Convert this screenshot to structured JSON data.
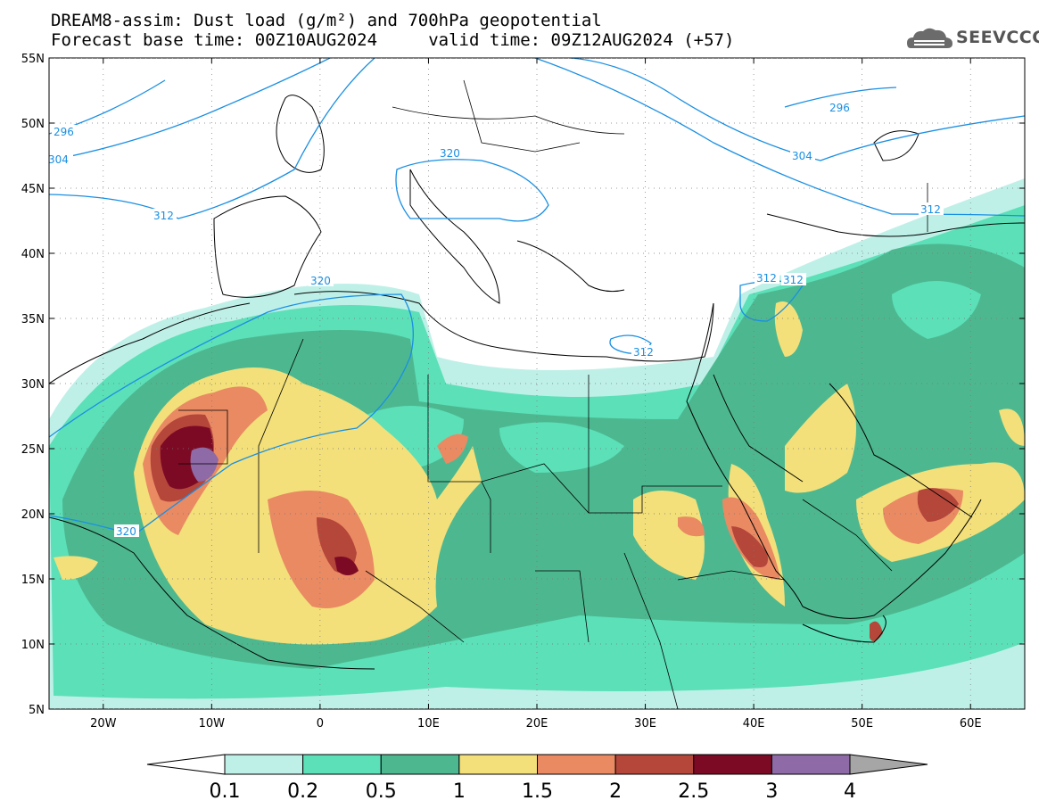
{
  "header": {
    "title_line1": "DREAM8-assim: Dust load (g/m²) and 700hPa geopotential",
    "title_line2": "Forecast base time: 00Z10AUG2024     valid time: 09Z12AUG2024 (+57)"
  },
  "logo": {
    "text": "SEEVCCC",
    "icon": "cloud-icon"
  },
  "map": {
    "lat_labels": [
      "55N",
      "50N",
      "45N",
      "40N",
      "35N",
      "30N",
      "25N",
      "20N",
      "15N",
      "10N",
      "5N"
    ],
    "lon_labels": [
      "20W",
      "10W",
      "0",
      "10E",
      "20E",
      "30E",
      "40E",
      "50E",
      "60E"
    ],
    "contour_labels": [
      "296",
      "304",
      "312",
      "320",
      "320",
      "320",
      "312",
      "312",
      "312",
      "312",
      "304",
      "296"
    ],
    "contour_color": "#1a8fe3"
  },
  "colorbar": {
    "labels": [
      "0.1",
      "0.2",
      "0.5",
      "1",
      "1.5",
      "2",
      "2.5",
      "3",
      "4"
    ],
    "colors": [
      "#ffffff",
      "#bff0e8",
      "#5ce0b8",
      "#4db890",
      "#f3e07a",
      "#e98a63",
      "#b5463a",
      "#7c0a25",
      "#8e6aa6",
      "#a6a6a6"
    ]
  }
}
